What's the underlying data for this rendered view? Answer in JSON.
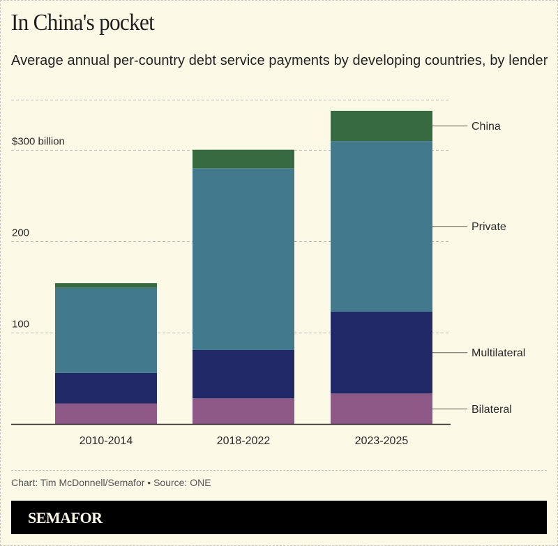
{
  "header": {
    "title": "In China's pocket",
    "subtitle": "Average annual per-country debt service payments by developing countries, by lender"
  },
  "chart_data": {
    "type": "bar",
    "stacked": true,
    "title": "In China's pocket",
    "subtitle": "Average annual per-country debt service payments by developing countries, by lender",
    "xlabel": "",
    "ylabel": "$ billion",
    "ylim": [
      0,
      355
    ],
    "yticks": [
      100,
      200,
      300
    ],
    "ytick_labels": [
      "100",
      "200",
      "$300 billion"
    ],
    "grid": true,
    "legend_placement": "right (direct labels)",
    "categories": [
      "2010-2014",
      "2018-2022",
      "2023-2025"
    ],
    "series": [
      {
        "name": "Bilateral",
        "color": "#8e5987",
        "values": [
          22.7,
          28.4,
          33.7
        ]
      },
      {
        "name": "Multilateral",
        "color": "#212a66",
        "values": [
          33.6,
          52.9,
          89.6
        ]
      },
      {
        "name": "Private",
        "color": "#43798c",
        "values": [
          93.1,
          199.0,
          186.8
        ]
      },
      {
        "name": "China",
        "color": "#386a41",
        "values": [
          5.1,
          20.3,
          33.1
        ]
      }
    ]
  },
  "footer": {
    "credit": "Chart: Tim McDonnell/Semafor • Source: ONE",
    "brand": "SEMAFOR"
  },
  "colors": {
    "background": "#fcf9e6",
    "brand_bar": "#000000",
    "brand_text": "#fcf9e6"
  }
}
